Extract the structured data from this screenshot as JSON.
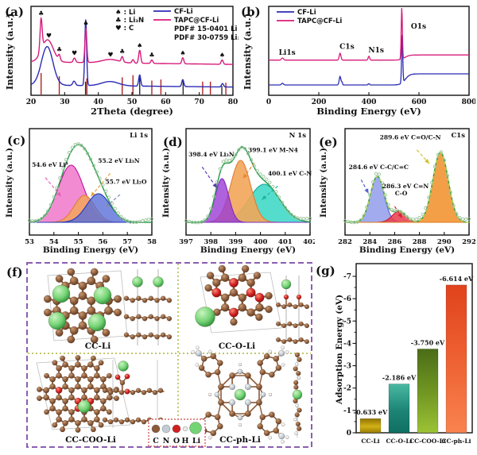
{
  "figure": {
    "panel_letters": {
      "a": "(a)",
      "b": "(b)",
      "c": "(c)",
      "d": "(d)",
      "e": "(e)",
      "f": "(f)",
      "g": "(g)"
    }
  },
  "panel_f": {
    "structures": [
      {
        "label": "CC-Li"
      },
      {
        "label": "CC-O-Li"
      },
      {
        "label": "CC-COO-Li"
      },
      {
        "label": "CC-ph-Li"
      }
    ],
    "atom_legend": [
      {
        "symbol": "C",
        "color": "#8a5a3b"
      },
      {
        "symbol": "N",
        "color": "#c2ccd4"
      },
      {
        "symbol": "O",
        "color": "#cf2020"
      },
      {
        "symbol": "H",
        "color": "#ececec"
      },
      {
        "symbol": "Li",
        "color": "#74d374"
      }
    ]
  },
  "chart_data": [
    {
      "id": "a",
      "type": "line",
      "xlabel": "2Theta (degree)",
      "ylabel": "Intensity (a.u.)",
      "xlim": [
        20,
        80
      ],
      "xticks": [
        20,
        30,
        40,
        50,
        60,
        70,
        80
      ],
      "grid": false,
      "legend_position": "top-right",
      "legend_symbols": [
        {
          "glyph": "♠",
          "label": "Li"
        },
        {
          "glyph": "♣",
          "label": "Li₃N"
        },
        {
          "glyph": "♥",
          "label": "C"
        }
      ],
      "legend_series": [
        {
          "label": "CF-Li",
          "color": "#2b2bb5"
        },
        {
          "label": "TAPC@CF-Li",
          "color": "#d81b7a"
        }
      ],
      "legend_refs": [
        {
          "label": "PDF# 15-0401 Li",
          "color": "#1a1a1a"
        },
        {
          "label": "PDF# 30-0759 Li₃N",
          "color": "#b22222"
        }
      ],
      "series": [
        {
          "name": "CF-Li",
          "color": "#2b2bb5",
          "base": 12,
          "slope": -0.04,
          "peaks": [
            [
              24.8,
              1.7,
              45
            ],
            [
              32.8,
              0.4,
              5
            ],
            [
              36.25,
              0.28,
              77
            ],
            [
              43.5,
              2.5,
              5
            ],
            [
              52.3,
              0.3,
              13
            ],
            [
              65.1,
              0.3,
              8
            ],
            [
              76.9,
              0.3,
              4
            ]
          ]
        },
        {
          "name": "TAPC@CF-Li",
          "color": "#d81b7a",
          "base": 39,
          "slope": -0.05,
          "peaks": [
            [
              23.0,
              0.32,
              37
            ],
            [
              24.9,
              1.7,
              26
            ],
            [
              28.4,
              0.3,
              6
            ],
            [
              32.9,
              0.35,
              5
            ],
            [
              36.3,
              0.28,
              40
            ],
            [
              43.6,
              2.5,
              4
            ],
            [
              47.1,
              0.3,
              6
            ],
            [
              50.3,
              0.3,
              4
            ],
            [
              52.3,
              0.3,
              15
            ],
            [
              55.9,
              0.3,
              4
            ],
            [
              65.1,
              0.3,
              7
            ],
            [
              76.8,
              0.3,
              5
            ]
          ]
        }
      ],
      "peak_markers": [
        {
          "glyph": "♣",
          "x": 23.0
        },
        {
          "glyph": "♥",
          "x": 25.3
        },
        {
          "glyph": "♣",
          "x": 28.4
        },
        {
          "glyph": "♥",
          "x": 32.9
        },
        {
          "glyph": "♠",
          "x": 36.3
        },
        {
          "glyph": "♥",
          "x": 43.6
        },
        {
          "glyph": "♣",
          "x": 47.1
        },
        {
          "glyph": "♠",
          "x": 52.3
        },
        {
          "glyph": "♣",
          "x": 55.9
        },
        {
          "glyph": "♠",
          "x": 65.1
        },
        {
          "glyph": "♠",
          "x": 76.8
        }
      ],
      "ref_patterns": [
        {
          "name": "PDF# 30-0759 Li₃N",
          "color": "#b22222",
          "sticks": [
            [
              23.0,
              1.0
            ],
            [
              28.4,
              0.85
            ],
            [
              36.6,
              0.75
            ],
            [
              47.1,
              0.8
            ],
            [
              50.3,
              0.9
            ],
            [
              55.9,
              0.65
            ],
            [
              58.6,
              0.7
            ],
            [
              71.0,
              0.6
            ],
            [
              73.3,
              0.6
            ],
            [
              77.9,
              0.55
            ]
          ]
        },
        {
          "name": "PDF# 15-0401 Li",
          "color": "#2a2a2a",
          "sticks": [
            [
              36.2,
              0.6
            ],
            [
              52.3,
              0.8
            ],
            [
              65.2,
              0.7
            ],
            [
              76.7,
              0.4
            ]
          ]
        }
      ]
    },
    {
      "id": "b",
      "type": "line",
      "xlabel": "Binding Energy (eV)",
      "ylabel": "Intensity (a.u.)",
      "xlim": [
        0,
        800
      ],
      "xticks": [
        0,
        200,
        400,
        600,
        800
      ],
      "grid": false,
      "legend_position": "top-left",
      "legend_series": [
        {
          "label": "CF-Li",
          "color": "#2b2bb5"
        },
        {
          "label": "TAPC@CF-Li",
          "color": "#d81b7a"
        }
      ],
      "series": [
        {
          "name": "CF-Li",
          "color": "#2b2bb5",
          "base": 12,
          "step": {
            "x": 545,
            "w": 9,
            "h": 13
          },
          "peaks": [
            [
              55,
              4,
              2
            ],
            [
              285,
              3.5,
              10
            ],
            [
              293,
              2,
              3
            ],
            [
              400,
              3,
              1.5
            ],
            [
              533,
              2.3,
              56
            ]
          ]
        },
        {
          "name": "TAPC@CF-Li",
          "color": "#d81b7a",
          "base": 41,
          "step": {
            "x": 543,
            "w": 9,
            "h": 6
          },
          "peaks": [
            [
              55,
              4,
              2.5
            ],
            [
              285,
              3.5,
              8
            ],
            [
              400,
              3,
              4.5
            ],
            [
              531.5,
              2.3,
              60
            ]
          ]
        }
      ],
      "peak_labels": [
        {
          "text": "Li1s",
          "x": 40,
          "y": 47
        },
        {
          "text": "C1s",
          "x": 283,
          "y": 54
        },
        {
          "text": "N1s",
          "x": 398,
          "y": 50
        },
        {
          "text": "O1s",
          "x": 568,
          "y": 78
        }
      ]
    },
    {
      "id": "c",
      "type": "xps_fit",
      "corner": "Li 1s",
      "xlabel": "Binding Energy (eV)",
      "ylabel": "Intensity (a.u.)",
      "xlim": [
        53,
        58
      ],
      "xticks": [
        53,
        54,
        55,
        56,
        57,
        58
      ],
      "grid": false,
      "envelope_color": "#2f9e4f",
      "point_color": "#9bc39b",
      "env_dash": false,
      "components": [
        {
          "name": "Li⁰",
          "center": 54.7,
          "sigma": 0.52,
          "amp": 72,
          "fill": "#f06ec8",
          "fill_opacity": 0.8,
          "stroke": "#b5179e"
        },
        {
          "name": "Li₃N",
          "center": 55.25,
          "sigma": 0.42,
          "amp": 34,
          "fill": "#f2a65a",
          "fill_opacity": 0.85,
          "stroke": "#e07b39"
        },
        {
          "name": "Li₂O",
          "center": 55.82,
          "sigma": 0.48,
          "amp": 36,
          "fill": "#5a6fd8",
          "fill_opacity": 0.8,
          "stroke": "#2436b8"
        }
      ],
      "annotations": [
        {
          "text": "54.6 eV Li⁰",
          "tx": 0.02,
          "ty": 0.36,
          "x1": 0.13,
          "y1": 0.46,
          "x2": 0.26,
          "y2": 0.64,
          "color": "#e560b5"
        },
        {
          "text": "55.2 eV Li₃N",
          "tx": 0.56,
          "ty": 0.32,
          "x1": 0.66,
          "y1": 0.42,
          "x2": 0.5,
          "y2": 0.64,
          "color": "#e8a03c"
        },
        {
          "text": "55.7 eV Li₂O",
          "tx": 0.62,
          "ty": 0.52,
          "x1": 0.74,
          "y1": 0.62,
          "x2": 0.62,
          "y2": 0.74,
          "color": "#7d8bb0"
        }
      ]
    },
    {
      "id": "d",
      "type": "xps_fit",
      "corner": "N 1s",
      "xlabel": "Binding Energy (eV)",
      "ylabel": "Intensity (a.u.)",
      "xlim": [
        397,
        402
      ],
      "xticks": [
        397,
        398,
        399,
        400,
        401,
        402
      ],
      "grid": false,
      "envelope_color": "#2f9e4f",
      "point_color": "#9bc39b",
      "env_dash": false,
      "components": [
        {
          "name": "C-N",
          "center": 400.15,
          "sigma": 0.62,
          "amp": 48,
          "fill": "#41d9c6",
          "fill_opacity": 0.9,
          "stroke": "#16a89a"
        },
        {
          "name": "M-N4",
          "center": 399.2,
          "sigma": 0.4,
          "amp": 78,
          "fill": "#f2a65a",
          "fill_opacity": 0.9,
          "stroke": "#e07b39"
        },
        {
          "name": "Li₃N",
          "center": 398.45,
          "sigma": 0.27,
          "amp": 55,
          "fill": "#9a3bd6",
          "fill_opacity": 0.8,
          "stroke": "#7b2cbf"
        }
      ],
      "annotations": [
        {
          "text": "398.4 eV Li₃N",
          "tx": 0.02,
          "ty": 0.26,
          "x1": 0.13,
          "y1": 0.36,
          "x2": 0.25,
          "y2": 0.56,
          "color": "#5b3fb5"
        },
        {
          "text": "399.1 eV M-N4",
          "tx": 0.5,
          "ty": 0.22,
          "x1": 0.55,
          "y1": 0.32,
          "x2": 0.46,
          "y2": 0.47,
          "color": "#e8862c"
        },
        {
          "text": "400.1 eV C-N",
          "tx": 0.66,
          "ty": 0.44,
          "x1": 0.74,
          "y1": 0.54,
          "x2": 0.61,
          "y2": 0.67,
          "color": "#1fb5a5"
        }
      ]
    },
    {
      "id": "e",
      "type": "xps_fit",
      "corner": "C1s",
      "xlabel": "Binding Energy (eV)",
      "ylabel": "Intensity (a.u.)",
      "xlim": [
        282,
        292
      ],
      "xticks": [
        282,
        284,
        286,
        288,
        290,
        292
      ],
      "grid": false,
      "envelope_color": "#2f9e4f",
      "point_color": "#9bc39b",
      "env_dash": true,
      "components": [
        {
          "name": "C-C/C=C",
          "center": 284.6,
          "sigma": 0.55,
          "amp": 58,
          "fill": "#8a96ea",
          "fill_opacity": 0.8,
          "stroke": "#5562d2"
        },
        {
          "name": "C=N / C-O",
          "center": 286.35,
          "sigma": 0.55,
          "amp": 14,
          "fill": "#ea3a4a",
          "fill_opacity": 0.85,
          "stroke": "#c21f30"
        },
        {
          "name": "C=O/C-N",
          "center": 289.7,
          "sigma": 0.62,
          "amp": 88,
          "fill": "#f29a3e",
          "fill_opacity": 0.95,
          "stroke": "#e07b20"
        }
      ],
      "annotations": [
        {
          "text": "289.6 eV C=O/C-N",
          "tx": 0.28,
          "ty": 0.1,
          "x1": 0.58,
          "y1": 0.2,
          "x2": 0.68,
          "y2": 0.33,
          "color": "#cfc22a"
        },
        {
          "text": "284.6 eV C-C/C=C",
          "tx": 0.03,
          "ty": 0.38,
          "x1": 0.13,
          "y1": 0.48,
          "x2": 0.19,
          "y2": 0.61,
          "color": "#5562d2"
        },
        {
          "text": "286.3 eV C=N",
          "text2": "C-O",
          "tx": 0.3,
          "ty": 0.56,
          "x1": 0.4,
          "y1": 0.73,
          "x2": 0.46,
          "y2": 0.84,
          "color": "#d42030"
        }
      ]
    },
    {
      "id": "g",
      "type": "bar",
      "ylabel": "Adsorption Energy (eV)",
      "xlabel": "",
      "categories": [
        "CC-Li",
        "CC-O-Li",
        "CC-COO-Li",
        "CC-ph-Li"
      ],
      "values": [
        -0.633,
        -2.186,
        -3.75,
        -6.614
      ],
      "bar_labels": [
        "-0.633 eV",
        "-2.186 eV",
        "-3.750 eV",
        "-6.614 eV"
      ],
      "bar_colors": [
        [
          "#8f7303",
          "#d2b114",
          "#9a7d06"
        ],
        [
          "#49b9a3",
          "#1d8475",
          "#0f6f62"
        ],
        [
          "#4a6d16",
          "#739924",
          "#9cc335"
        ],
        [
          "#e0431d",
          "#ef6434",
          "#f98350"
        ]
      ],
      "ylim": [
        0,
        -7
      ],
      "yticks": [
        0,
        -1,
        -2,
        -3,
        -4,
        -5,
        -6,
        -7
      ],
      "grid": false,
      "legend_position": "none"
    }
  ]
}
